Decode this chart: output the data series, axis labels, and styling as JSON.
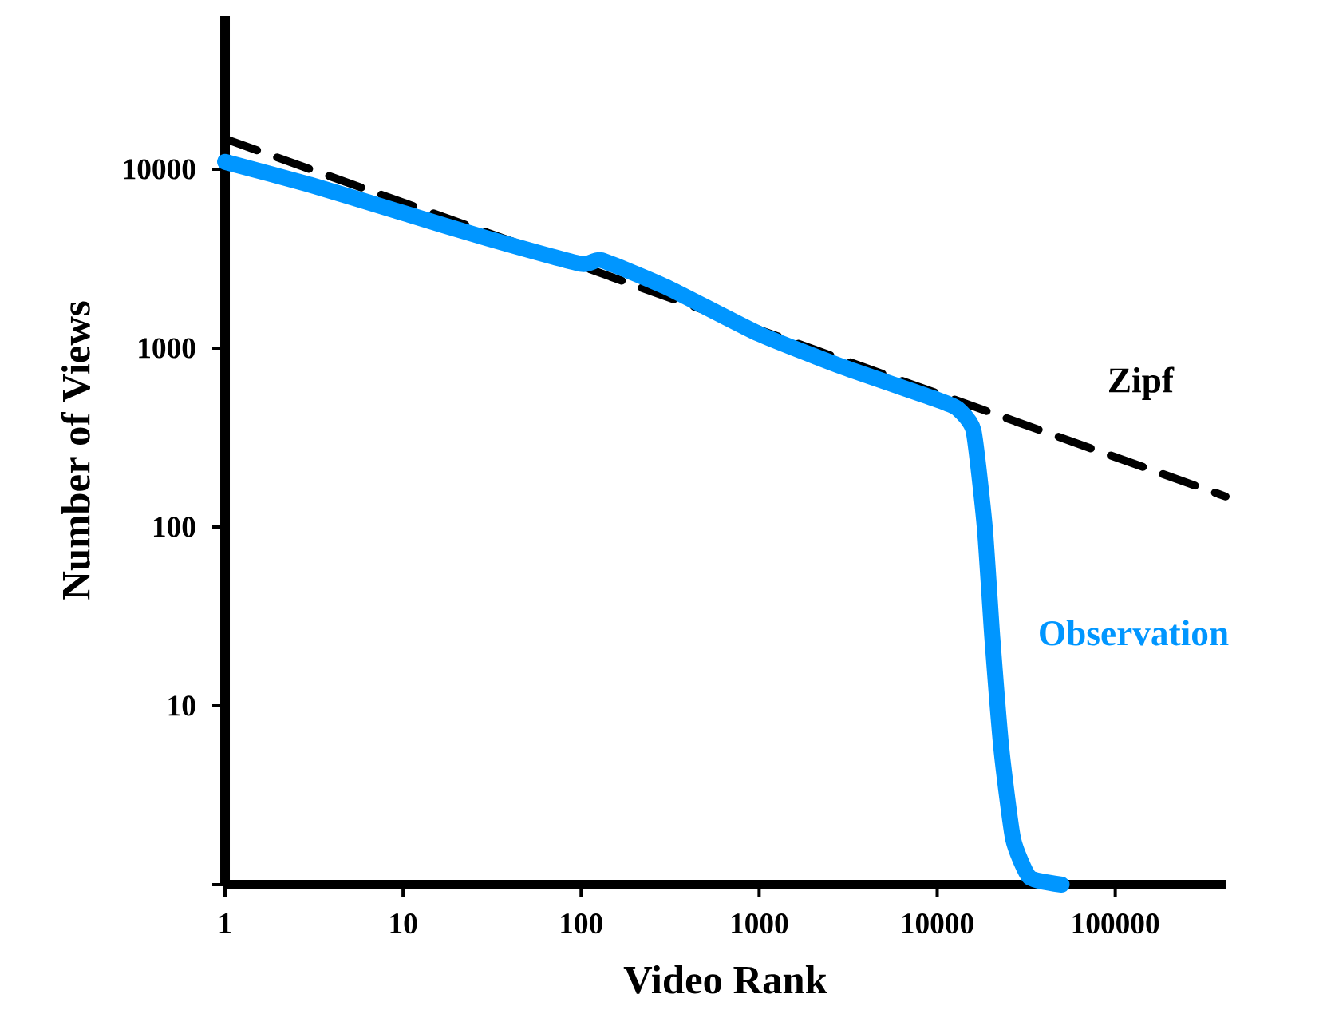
{
  "chart_data": {
    "type": "line",
    "xlabel": "Video Rank",
    "ylabel": "Number of Views",
    "log": "xy",
    "xlim": [
      1,
      417000
    ],
    "ylim": [
      1,
      72000
    ],
    "xticks": [
      1,
      10,
      100,
      1000,
      10000,
      100000
    ],
    "yticks": [
      {
        "value": 1,
        "label": null
      },
      10,
      100,
      1000,
      10000
    ],
    "series": [
      {
        "name": "Zipf",
        "color": "#000000",
        "line_style": "dashed",
        "x": [
          1,
          417000
        ],
        "values": [
          14800,
          148
        ]
      },
      {
        "name": "Observation",
        "color": "#0096ff",
        "line_style": "solid",
        "x": [
          1,
          3,
          10,
          30,
          100,
          130,
          300,
          1000,
          3000,
          10000,
          13000,
          16000,
          18500,
          20400,
          23000,
          26700,
          33000,
          50000
        ],
        "values": [
          11000,
          8200,
          5700,
          4100,
          2960,
          3100,
          2200,
          1200,
          780,
          515,
          460,
          345,
          100,
          24,
          5.6,
          1.8,
          1.1,
          1
        ]
      }
    ]
  }
}
